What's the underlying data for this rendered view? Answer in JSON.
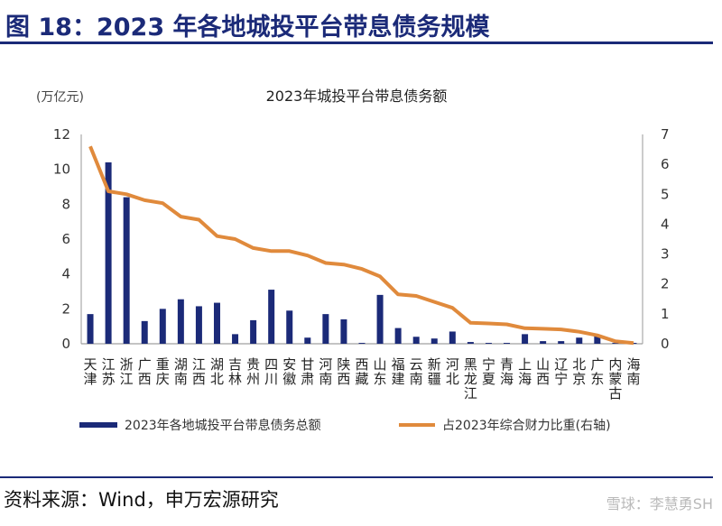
{
  "figure": {
    "title": "图 18：2023 年各地城投平台带息债务规模",
    "source": "资料来源：Wind，申万宏源研究",
    "watermark": "雪球：李慧勇SH"
  },
  "chart_data": {
    "type": "bar+line",
    "title": "2023年城投平台带息债务额",
    "y_unit_label": "(万亿元)",
    "categories": [
      "天津",
      "江苏",
      "浙江",
      "广西",
      "重庆",
      "湖南",
      "江西",
      "湖北",
      "吉林",
      "贵州",
      "四川",
      "安徽",
      "甘肃",
      "河南",
      "陕西",
      "西藏",
      "山东",
      "福建",
      "云南",
      "新疆",
      "河北",
      "黑龙江",
      "宁夏",
      "青海",
      "上海",
      "山西",
      "辽宁",
      "北京",
      "广东",
      "内蒙古",
      "海南"
    ],
    "series": [
      {
        "name": "2023年各地城投平台带息债务总额",
        "type": "bar",
        "axis": "left",
        "color": "#1b2a78",
        "values": [
          1.7,
          10.4,
          8.4,
          1.3,
          2.0,
          2.55,
          2.15,
          2.35,
          0.55,
          1.35,
          3.1,
          1.9,
          0.35,
          1.7,
          1.4,
          0.05,
          2.8,
          0.9,
          0.4,
          0.3,
          0.7,
          0.1,
          0.05,
          0.05,
          0.55,
          0.15,
          0.15,
          0.35,
          0.5,
          0.05,
          0.05
        ]
      },
      {
        "name": "占2023年综合财力比重(右轴)",
        "type": "line",
        "axis": "right",
        "color": "#e08a3c",
        "values": [
          6.6,
          5.1,
          5.0,
          4.8,
          4.7,
          4.25,
          4.15,
          3.6,
          3.5,
          3.2,
          3.1,
          3.1,
          2.95,
          2.7,
          2.65,
          2.5,
          2.25,
          1.65,
          1.6,
          1.4,
          1.2,
          0.7,
          0.68,
          0.65,
          0.52,
          0.5,
          0.48,
          0.4,
          0.28,
          0.08,
          0.02
        ]
      }
    ],
    "y_left": {
      "min": 0,
      "max": 12,
      "ticks": [
        "0",
        "2",
        "4",
        "6",
        "8",
        "10",
        "12"
      ]
    },
    "y_right": {
      "min": 0,
      "max": 7,
      "ticks": [
        "0",
        "1",
        "2",
        "3",
        "4",
        "5",
        "6",
        "7"
      ]
    },
    "legend_position": "bottom"
  }
}
